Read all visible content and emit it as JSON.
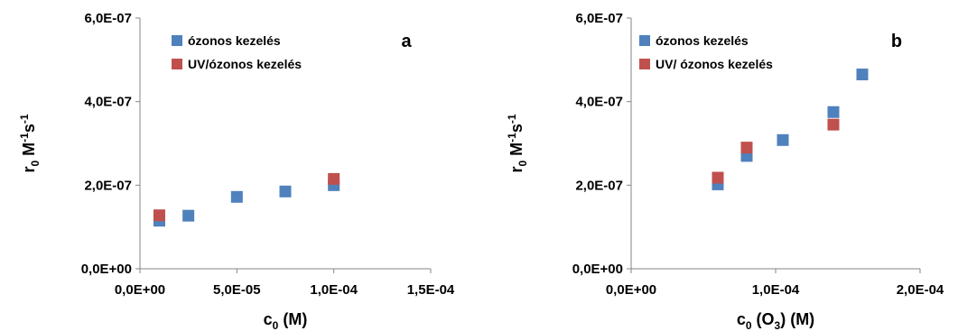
{
  "chart_data": [
    {
      "type": "scatter",
      "panel_label": "a",
      "xlabel": {
        "main": "c",
        "sub": "0",
        "rest": " (M)"
      },
      "ylabel": {
        "main": "r",
        "sub": "0",
        "mid": " M",
        "sup1": "-1",
        "mid2": "s",
        "sup2": "-1"
      },
      "xlim": [
        0,
        0.00015
      ],
      "ylim": [
        0,
        6e-07
      ],
      "x_ticks": [
        0,
        5e-05,
        0.0001,
        0.00015
      ],
      "x_tick_labels": [
        "0,0E+00",
        "5,0E-05",
        "1,0E-04",
        "1,5E-04"
      ],
      "y_ticks": [
        0,
        2e-07,
        4e-07,
        6e-07
      ],
      "y_tick_labels": [
        "0,0E+00",
        "2,0E-07",
        "4,0E-07",
        "6,0E-07"
      ],
      "legend_position": "top-left",
      "series": [
        {
          "name": "ózonos kezelés",
          "color": "#4f81bd",
          "points": [
            {
              "x": 1e-05,
              "y": 1.15e-07
            },
            {
              "x": 2.5e-05,
              "y": 1.27e-07
            },
            {
              "x": 5e-05,
              "y": 1.72e-07
            },
            {
              "x": 7.5e-05,
              "y": 1.85e-07
            },
            {
              "x": 0.0001,
              "y": 2e-07
            }
          ]
        },
        {
          "name": "UV/ózonos kezelés",
          "color": "#c0504d",
          "points": [
            {
              "x": 1e-05,
              "y": 1.28e-07
            },
            {
              "x": 0.0001,
              "y": 2.15e-07
            }
          ]
        }
      ]
    },
    {
      "type": "scatter",
      "panel_label": "b",
      "xlabel": {
        "main": "c",
        "sub": "0",
        "rest": " (O",
        "sub2": "3",
        "rest2": ") (M)"
      },
      "ylabel": {
        "main": "r",
        "sub": "0",
        "mid": " M",
        "sup1": "-1",
        "mid2": "s",
        "sup2": "-1"
      },
      "xlim": [
        0,
        0.0002
      ],
      "ylim": [
        0,
        6e-07
      ],
      "x_ticks": [
        0,
        0.0001,
        0.0002
      ],
      "x_tick_labels": [
        "0,0E+00",
        "1,0E-04",
        "2,0E-04"
      ],
      "y_ticks": [
        0,
        2e-07,
        4e-07,
        6e-07
      ],
      "y_tick_labels": [
        "0,0E+00",
        "2,0E-07",
        "4,0E-07",
        "6,0E-07"
      ],
      "legend_position": "top-left",
      "series": [
        {
          "name": "ózonos kezelés",
          "color": "#4f81bd",
          "points": [
            {
              "x": 6e-05,
              "y": 2.02e-07
            },
            {
              "x": 8e-05,
              "y": 2.7e-07
            },
            {
              "x": 0.000105,
              "y": 3.08e-07
            },
            {
              "x": 0.00014,
              "y": 3.75e-07
            },
            {
              "x": 0.00016,
              "y": 4.65e-07
            }
          ]
        },
        {
          "name": "UV/ ózonos kezelés",
          "color": "#c0504d",
          "points": [
            {
              "x": 6e-05,
              "y": 2.18e-07
            },
            {
              "x": 8e-05,
              "y": 2.9e-07
            },
            {
              "x": 0.00014,
              "y": 3.45e-07
            }
          ]
        }
      ]
    }
  ]
}
